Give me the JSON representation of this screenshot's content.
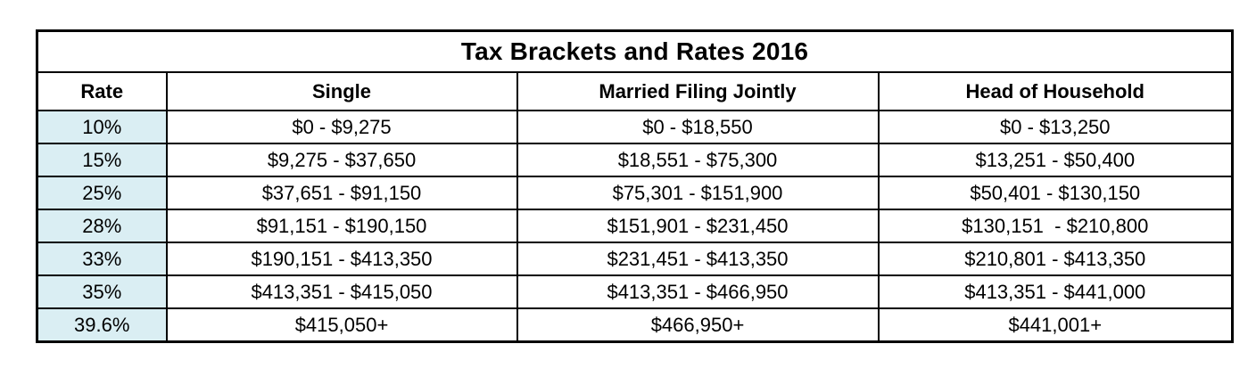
{
  "table": {
    "title": "Tax Brackets and Rates 2016",
    "columns": [
      "Rate",
      "Single",
      "Married Filing Jointly",
      "Head of Household"
    ],
    "rows": [
      [
        "10%",
        "$0 - $9,275",
        "$0 - $18,550",
        "$0 - $13,250"
      ],
      [
        "15%",
        "$9,275 - $37,650",
        "$18,551 - $75,300",
        "$13,251 - $50,400"
      ],
      [
        "25%",
        "$37,651 - $91,150",
        "$75,301 - $151,900",
        "$50,401 - $130,150"
      ],
      [
        "28%",
        "$91,151 - $190,150",
        "$151,901 - $231,450",
        "$130,151  - $210,800"
      ],
      [
        "33%",
        "$190,151 - $413,350",
        "$231,451 - $413,350",
        "$210,801 - $413,350"
      ],
      [
        "35%",
        "$413,351 - $415,050",
        "$413,351 - $466,950",
        "$413,351 - $441,000"
      ],
      [
        "39.6%",
        "$415,050+",
        "$466,950+",
        "$441,001+"
      ]
    ]
  },
  "chart_data": {
    "type": "table",
    "title": "Tax Brackets and Rates 2016",
    "columns": [
      "Rate",
      "Single",
      "Married Filing Jointly",
      "Head of Household"
    ],
    "rows": [
      [
        "10%",
        "$0 - $9,275",
        "$0 - $18,550",
        "$0 - $13,250"
      ],
      [
        "15%",
        "$9,275 - $37,650",
        "$18,551 - $75,300",
        "$13,251 - $50,400"
      ],
      [
        "25%",
        "$37,651 - $91,150",
        "$75,301 - $151,900",
        "$50,401 - $130,150"
      ],
      [
        "28%",
        "$91,151 - $190,150",
        "$151,901 - $231,450",
        "$130,151 - $210,800"
      ],
      [
        "33%",
        "$190,151 - $413,350",
        "$231,451 - $413,350",
        "$210,801 - $413,350"
      ],
      [
        "35%",
        "$413,351 - $415,050",
        "$413,351 - $466,950",
        "$413,351 - $441,000"
      ],
      [
        "39.6%",
        "$415,050+",
        "$466,950+",
        "$441,001+"
      ]
    ],
    "rates_percent": [
      10,
      15,
      25,
      28,
      33,
      35,
      39.6
    ],
    "layout": "bordered grid, title row spanning all columns, rate column shaded"
  },
  "colors": {
    "rate_cell_bg": "#daeef3",
    "border": "#000000",
    "text": "#000000",
    "background": "#ffffff"
  }
}
